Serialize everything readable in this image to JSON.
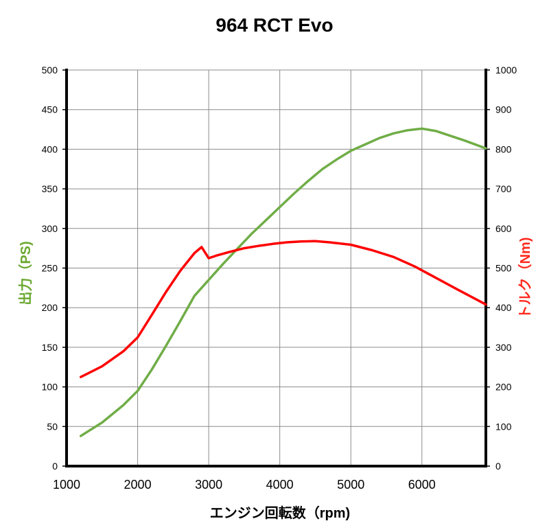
{
  "chart_data": {
    "type": "line",
    "title": "964 RCT Evo",
    "xlabel": "エンジン回転数（rpm)",
    "ylabel": "出力（PS)",
    "y2label": "トルク（Nm)",
    "xlim": [
      1000,
      6900
    ],
    "ylim": [
      0,
      500
    ],
    "y2lim": [
      0,
      1000
    ],
    "x_ticks": [
      "1000",
      "2000",
      "3000",
      "4000",
      "5000",
      "6000"
    ],
    "y_ticks": [
      "0",
      "50",
      "100",
      "150",
      "200",
      "250",
      "300",
      "350",
      "400",
      "450",
      "500"
    ],
    "y2_ticks": [
      "0",
      "100",
      "200",
      "300",
      "400",
      "500",
      "600",
      "700",
      "800",
      "900",
      "1000"
    ],
    "grid": true,
    "series": [
      {
        "axis": "left",
        "color": "#70ad47",
        "x": [
          1200,
          1500,
          1800,
          2000,
          2200,
          2400,
          2600,
          2800,
          3000,
          3200,
          3400,
          3600,
          3800,
          4000,
          4200,
          4400,
          4600,
          4800,
          5000,
          5200,
          5400,
          5600,
          5800,
          6000,
          6200,
          6400,
          6600,
          6900
        ],
        "values": [
          38,
          55,
          77,
          95,
          122,
          152,
          183,
          215,
          235,
          255,
          274,
          293,
          310,
          327,
          344,
          360,
          375,
          387,
          398,
          406,
          414,
          420,
          424,
          426,
          423,
          417,
          411,
          401
        ]
      },
      {
        "axis": "right",
        "color": "#ff0000",
        "x": [
          1200,
          1500,
          1800,
          2000,
          2200,
          2400,
          2600,
          2800,
          2900,
          3000,
          3100,
          3300,
          3500,
          3700,
          3900,
          4100,
          4300,
          4500,
          4700,
          5000,
          5300,
          5600,
          5900,
          6200,
          6500,
          6900
        ],
        "values": [
          225,
          252,
          290,
          325,
          382,
          440,
          493,
          538,
          553,
          525,
          531,
          541,
          550,
          556,
          561,
          565,
          567,
          568,
          565,
          559,
          545,
          528,
          504,
          475,
          446,
          408
        ]
      }
    ]
  }
}
